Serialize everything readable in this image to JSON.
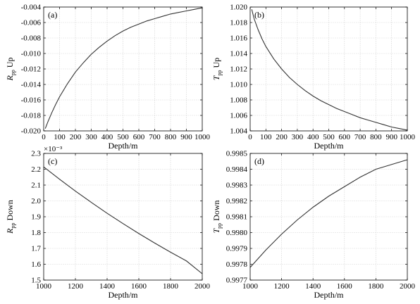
{
  "chart_data": [
    {
      "type": "line",
      "panel_label": "(a)",
      "ylabel_symbol": "R",
      "ylabel_subscript": "pp",
      "ylabel_suffix": " Up",
      "xlabel": "Depth/m",
      "xlim": [
        0,
        1000
      ],
      "ylim": [
        -0.02,
        -0.004
      ],
      "x_ticks": [
        0,
        100,
        200,
        300,
        400,
        500,
        600,
        700,
        800,
        900,
        1000
      ],
      "x_tick_labels": [
        "0",
        "100",
        "200",
        "300",
        "400",
        "500",
        "600",
        "700",
        "800",
        "900",
        "1000"
      ],
      "y_ticks": [
        -0.02,
        -0.018,
        -0.016,
        -0.014,
        -0.012,
        -0.01,
        -0.008,
        -0.006,
        -0.004
      ],
      "y_tick_labels": [
        "-0.020",
        "-0.018",
        "-0.016",
        "-0.014",
        "-0.012",
        "-0.010",
        "-0.008",
        "-0.006",
        "-0.004"
      ],
      "exponent_label": "",
      "tag_position": "top-left",
      "grid": true,
      "series": [
        {
          "x": [
            10,
            25,
            50,
            75,
            100,
            150,
            200,
            250,
            300,
            350,
            400,
            450,
            500,
            550,
            600,
            650,
            700,
            750,
            800,
            850,
            900,
            950,
            1000
          ],
          "values": [
            -0.0197,
            -0.0189,
            -0.0177,
            -0.0166,
            -0.0156,
            -0.0139,
            -0.0124,
            -0.0112,
            -0.0101,
            -0.0092,
            -0.0084,
            -0.0077,
            -0.0071,
            -0.0066,
            -0.0062,
            -0.0058,
            -0.0055,
            -0.0052,
            -0.0049,
            -0.0047,
            -0.0045,
            -0.0043,
            -0.0041
          ]
        }
      ]
    },
    {
      "type": "line",
      "panel_label": "(b)",
      "ylabel_symbol": "T",
      "ylabel_subscript": "pp",
      "ylabel_suffix": " Up",
      "xlabel": "Depth/m",
      "xlim": [
        0,
        1000
      ],
      "ylim": [
        1.004,
        1.02
      ],
      "x_ticks": [
        0,
        100,
        200,
        300,
        400,
        500,
        600,
        700,
        800,
        900,
        1000
      ],
      "x_tick_labels": [
        "0",
        "100",
        "200",
        "300",
        "400",
        "500",
        "600",
        "700",
        "800",
        "900",
        "1000"
      ],
      "y_ticks": [
        1.004,
        1.006,
        1.008,
        1.01,
        1.012,
        1.014,
        1.016,
        1.018,
        1.02
      ],
      "y_tick_labels": [
        "1.004",
        "1.006",
        "1.008",
        "1.010",
        "1.012",
        "1.014",
        "1.016",
        "1.018",
        "1.020"
      ],
      "exponent_label": "",
      "tag_position": "top-left",
      "grid": true,
      "series": [
        {
          "x": [
            10,
            25,
            50,
            75,
            100,
            150,
            200,
            250,
            300,
            350,
            400,
            450,
            500,
            550,
            600,
            650,
            700,
            750,
            800,
            850,
            900,
            950,
            1000
          ],
          "values": [
            1.0197,
            1.0185,
            1.0171,
            1.0159,
            1.0149,
            1.0133,
            1.012,
            1.0109,
            1.01,
            1.0092,
            1.0085,
            1.0079,
            1.0074,
            1.0069,
            1.0065,
            1.0061,
            1.0057,
            1.0054,
            1.0051,
            1.0048,
            1.0045,
            1.0043,
            1.0041
          ]
        }
      ]
    },
    {
      "type": "line",
      "panel_label": "(c)",
      "ylabel_symbol": "R",
      "ylabel_subscript": "pp",
      "ylabel_suffix": " Down",
      "xlabel": "Depth/m",
      "xlim": [
        1000,
        2000
      ],
      "ylim": [
        1.5,
        2.3
      ],
      "x_ticks": [
        1000,
        1200,
        1400,
        1600,
        1800,
        2000
      ],
      "x_tick_labels": [
        "1000",
        "1200",
        "1400",
        "1600",
        "1800",
        "2000"
      ],
      "y_ticks": [
        1.5,
        1.6,
        1.7,
        1.8,
        1.9,
        2.0,
        2.1,
        2.2,
        2.3
      ],
      "y_tick_labels": [
        "1.5",
        "1.6",
        "1.7",
        "1.8",
        "1.9",
        "2.0",
        "2.1",
        "2.2",
        "2.3"
      ],
      "exponent_label": "×10⁻³",
      "tag_position": "top-left",
      "grid": true,
      "series": [
        {
          "x": [
            1000,
            1100,
            1200,
            1300,
            1400,
            1500,
            1600,
            1700,
            1800,
            1900,
            2000
          ],
          "values": [
            2.215,
            2.137,
            2.062,
            1.991,
            1.922,
            1.857,
            1.794,
            1.734,
            1.676,
            1.621,
            1.54
          ]
        }
      ]
    },
    {
      "type": "line",
      "panel_label": "(d)",
      "ylabel_symbol": "T",
      "ylabel_subscript": "pp",
      "ylabel_suffix": " Down",
      "xlabel": "Depth/m",
      "xlim": [
        1000,
        2000
      ],
      "ylim": [
        0.9977,
        0.9985
      ],
      "x_ticks": [
        1000,
        1200,
        1400,
        1600,
        1800,
        2000
      ],
      "x_tick_labels": [
        "1000",
        "1200",
        "1400",
        "1600",
        "1800",
        "2000"
      ],
      "y_ticks": [
        0.9977,
        0.9978,
        0.9979,
        0.998,
        0.9981,
        0.9982,
        0.9983,
        0.9984,
        0.9985
      ],
      "y_tick_labels": [
        "0.9977",
        "0.9978",
        "0.9979",
        "0.9980",
        "0.9981",
        "0.9982",
        "0.9983",
        "0.9984",
        "0.9985"
      ],
      "exponent_label": "",
      "tag_position": "top-left",
      "grid": true,
      "series": [
        {
          "x": [
            1000,
            1100,
            1200,
            1300,
            1400,
            1500,
            1600,
            1700,
            1800,
            1900,
            2000
          ],
          "values": [
            0.99778,
            0.99789,
            0.99799,
            0.99808,
            0.99816,
            0.99823,
            0.99829,
            0.99835,
            0.9984,
            0.99843,
            0.99846
          ]
        }
      ]
    }
  ]
}
